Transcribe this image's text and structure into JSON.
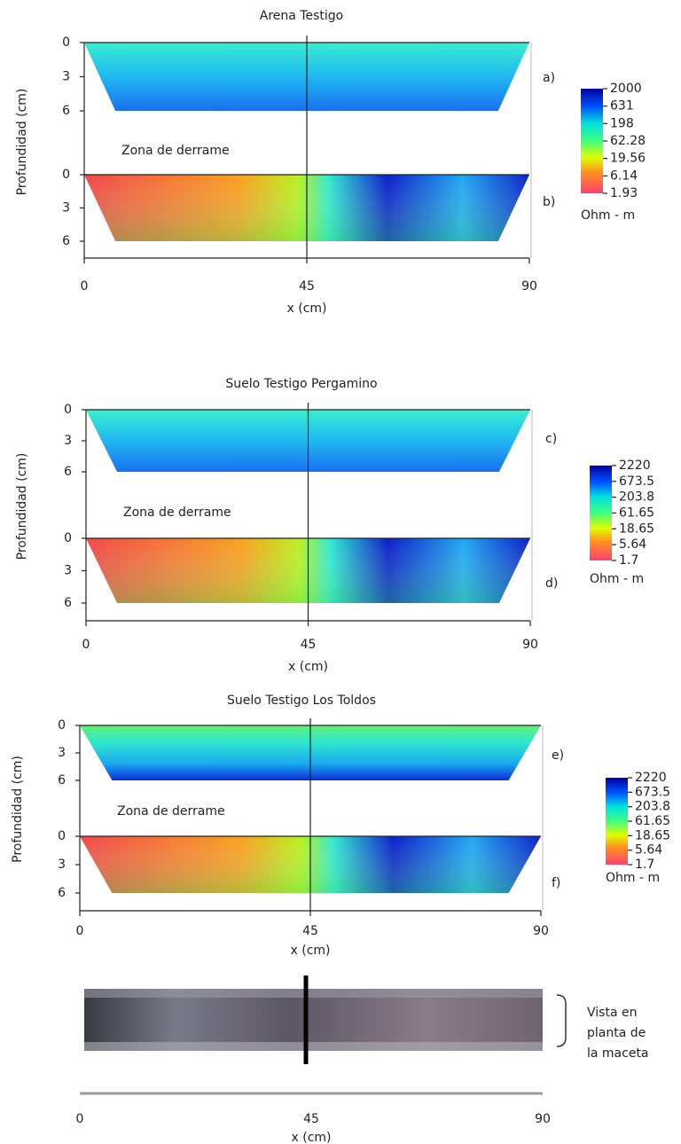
{
  "figures": [
    {
      "title": "Arena Testigo",
      "y_label": "Profundidad (cm)",
      "x_label": "x (cm)",
      "xticks": [
        0,
        45,
        90
      ],
      "yticks": [
        0,
        3,
        6
      ],
      "section_labels": [
        "a)",
        "b)"
      ],
      "spill_label": "Zona de derrame",
      "colorbar": {
        "ticks": [
          2000,
          631,
          198,
          62.28,
          19.56,
          6.14,
          1.93
        ],
        "unit": "Ohm - m"
      }
    },
    {
      "title": "Suelo Testigo Pergamino",
      "y_label": "Profundidad (cm)",
      "x_label": "x (cm)",
      "xticks": [
        0,
        45,
        90
      ],
      "yticks": [
        0,
        3,
        6
      ],
      "section_labels": [
        "c)",
        "d)"
      ],
      "spill_label": "Zona de derrame",
      "colorbar": {
        "ticks": [
          2220,
          673.5,
          203.8,
          61.65,
          18.65,
          5.64,
          1.7
        ],
        "unit": "Ohm - m"
      }
    },
    {
      "title": "Suelo Testigo Los Toldos",
      "y_label": "Profundidad (cm)",
      "x_label": "x (cm)",
      "xticks": [
        0,
        45,
        90
      ],
      "yticks": [
        0,
        3,
        6
      ],
      "section_labels": [
        "e)",
        "f)"
      ],
      "spill_label": "Zona de derrame",
      "colorbar": {
        "ticks": [
          2220,
          673.5,
          203.8,
          61.65,
          18.65,
          5.64,
          1.7
        ],
        "unit": "Ohm - m"
      }
    }
  ],
  "photo": {
    "caption": [
      "Vista en",
      "planta de",
      "la maceta"
    ],
    "xticks": [
      0,
      45,
      90
    ],
    "x_label": "x (cm)"
  }
}
